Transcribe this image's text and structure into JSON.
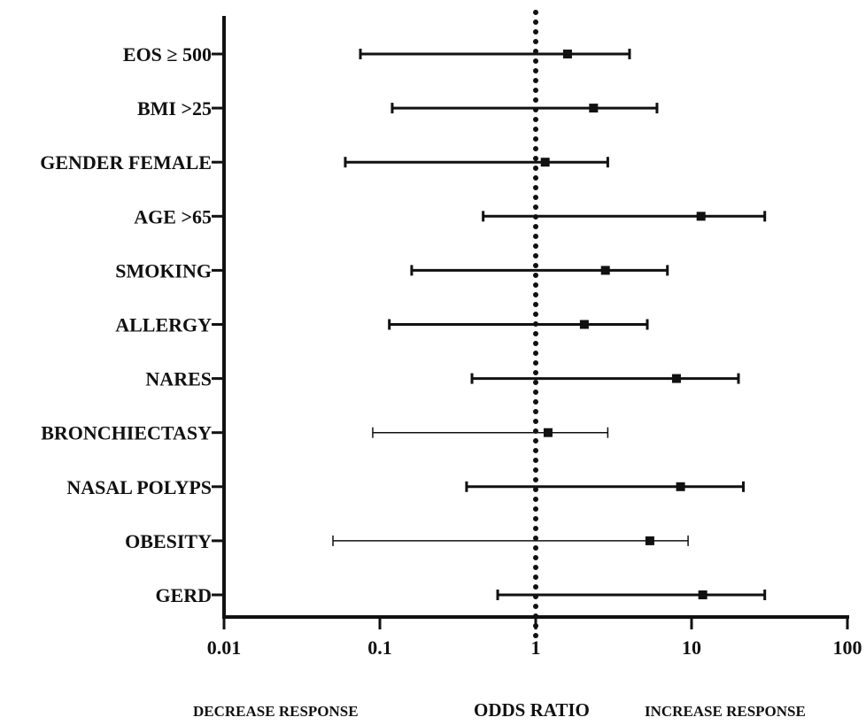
{
  "chart_data": {
    "type": "forest",
    "x_scale": "log",
    "xlim": [
      0.01,
      100
    ],
    "x_ticks": [
      "0.01",
      "0.1",
      "1",
      "10",
      "100"
    ],
    "x_tick_values": [
      0.01,
      0.1,
      1,
      10,
      100
    ],
    "reference_line": 1,
    "reference_style": "dotted",
    "xlabel": "ODDS RATIO",
    "left_annotation": "DECREASE RESPONSE",
    "right_annotation": "INCREASE RESPONSE",
    "grid": false,
    "rows": [
      {
        "label": "EOS ≥ 500",
        "or": 1.6,
        "lower": 0.075,
        "upper": 4.0
      },
      {
        "label": "BMI >25",
        "or": 2.35,
        "lower": 0.12,
        "upper": 6.0
      },
      {
        "label": "GENDER FEMALE",
        "or": 1.15,
        "lower": 0.06,
        "upper": 2.9
      },
      {
        "label": "AGE >65",
        "or": 11.5,
        "lower": 0.46,
        "upper": 29.5
      },
      {
        "label": "SMOKING",
        "or": 2.8,
        "lower": 0.16,
        "upper": 7.0
      },
      {
        "label": "ALLERGY",
        "or": 2.05,
        "lower": 0.115,
        "upper": 5.2
      },
      {
        "label": "NARES",
        "or": 8.0,
        "lower": 0.39,
        "upper": 20.0
      },
      {
        "label": "BRONCHIECTASY",
        "or": 1.2,
        "lower": 0.09,
        "upper": 2.9
      },
      {
        "label": "NASAL POLYPS",
        "or": 8.5,
        "lower": 0.36,
        "upper": 21.5
      },
      {
        "label": "OBESITY",
        "or": 5.4,
        "lower": 0.05,
        "upper": 9.5
      },
      {
        "label": "GERD",
        "or": 11.8,
        "lower": 0.57,
        "upper": 29.5
      }
    ],
    "colors": {
      "marks": "#111111",
      "axis": "#111111"
    }
  }
}
